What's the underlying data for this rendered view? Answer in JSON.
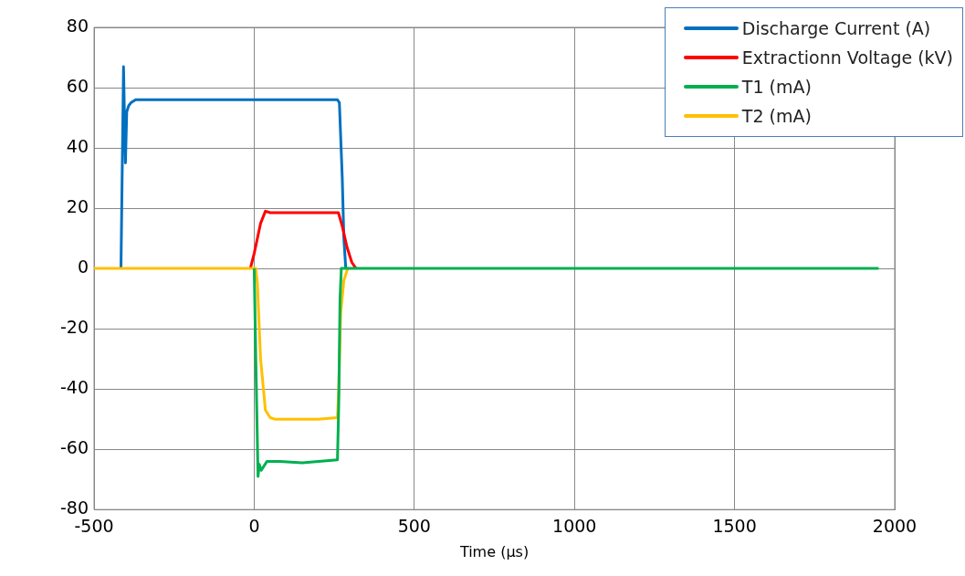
{
  "chart_data": {
    "type": "line",
    "xlabel": "Time (µs)",
    "xlim": [
      -500,
      2000
    ],
    "xticks": [
      -500,
      0,
      500,
      1000,
      1500,
      2000
    ],
    "ylim": [
      -80,
      80
    ],
    "yticks": [
      -80,
      -60,
      -40,
      -20,
      0,
      20,
      40,
      60,
      80
    ],
    "grid": true,
    "legend": "top right",
    "marker": "none",
    "line_style": "solid",
    "series": [
      {
        "name": "Discharge Current (A)",
        "color": "#0070c0",
        "x": [
          -416,
          -410,
          -408,
          -405,
          -402,
          -398,
          -392,
          -385,
          -370,
          -300,
          -200,
          -100,
          0,
          100,
          200,
          260,
          266,
          275,
          280,
          286
        ],
        "values": [
          0,
          50,
          67,
          50,
          35,
          52,
          54,
          55,
          56,
          56,
          56,
          56,
          56,
          56,
          56,
          56,
          55,
          30,
          10,
          0
        ]
      },
      {
        "name": "Extractionn Voltage (kV)",
        "color": "#ff0000",
        "x": [
          -12,
          0,
          20,
          35,
          50,
          100,
          200,
          263,
          275,
          290,
          305,
          318
        ],
        "values": [
          0,
          5,
          15,
          19,
          18.5,
          18.5,
          18.5,
          18.5,
          14,
          7,
          2,
          0
        ]
      },
      {
        "name": "T1 (mA)",
        "color": "#00b050",
        "x": [
          0,
          5,
          12,
          16,
          22,
          40,
          80,
          150,
          260,
          264,
          268,
          272,
          300,
          500,
          1000,
          1500,
          1950
        ],
        "values": [
          0,
          -30,
          -69,
          -65,
          -67,
          -64,
          -64,
          -64.5,
          -63.5,
          -45,
          -10,
          0,
          0,
          0,
          0,
          0,
          0
        ]
      },
      {
        "name": "T2 (mA)",
        "color": "#ffc000",
        "x": [
          -500,
          -250,
          5,
          10,
          20,
          35,
          50,
          64,
          100,
          200,
          260,
          264,
          270,
          280,
          292
        ],
        "values": [
          0,
          0,
          0,
          -5,
          -30,
          -47,
          -49.5,
          -50,
          -50,
          -50,
          -49.5,
          -40,
          -15,
          -4,
          0
        ]
      }
    ]
  }
}
